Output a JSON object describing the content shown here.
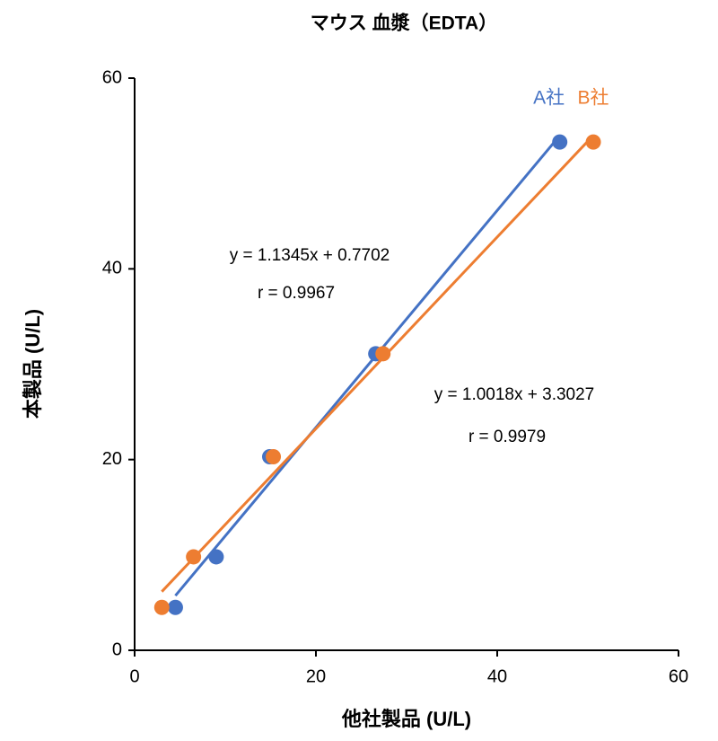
{
  "chart_data": {
    "type": "scatter",
    "title": "マウス  血漿（EDTA）",
    "x_label": "他社製品 (U/L)",
    "y_label": "本製品 (U/L)",
    "xlim": [
      0,
      60
    ],
    "xticks": [
      0,
      20,
      40,
      60
    ],
    "ylim": [
      0,
      60
    ],
    "yticks": [
      0,
      20,
      40,
      60
    ],
    "trendline": true,
    "series": [
      {
        "name": "A社",
        "color": "#4472c4",
        "x": [
          4.5,
          9.0,
          14.9,
          26.6,
          46.9
        ],
        "values": [
          4.5,
          9.8,
          20.3,
          31.1,
          53.3
        ]
      },
      {
        "name": "B社",
        "color": "#ed7d31",
        "x": [
          3.0,
          6.5,
          15.3,
          27.4,
          50.6
        ],
        "values": [
          4.5,
          9.8,
          20.3,
          31.1,
          53.3
        ]
      }
    ],
    "annotations": [
      "y = 1.1345x + 0.7702",
      "r = 0.9967",
      "y = 1.0018x + 3.3027",
      "r = 0.9979"
    ]
  }
}
